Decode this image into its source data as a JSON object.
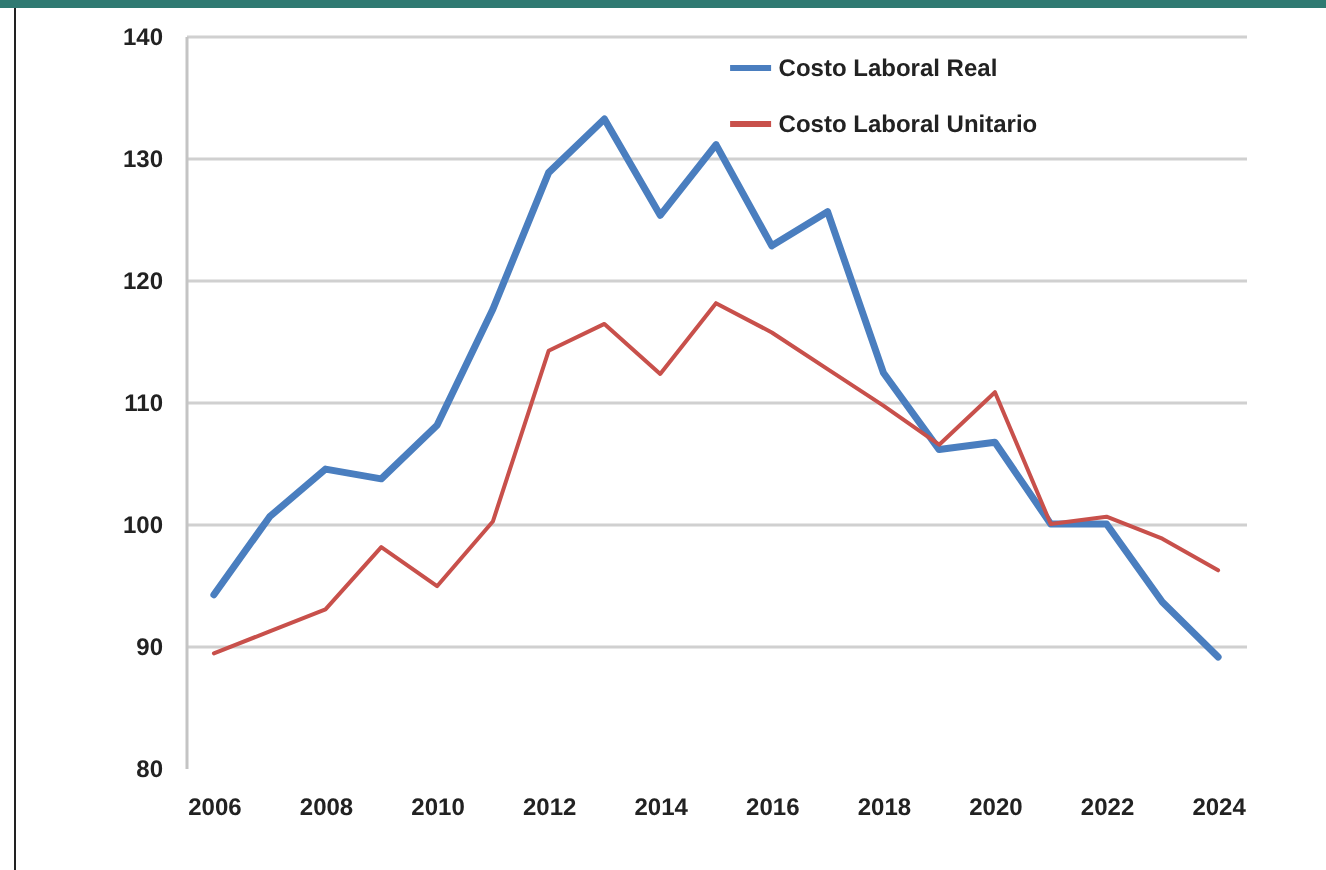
{
  "chart_data": {
    "type": "line",
    "x": [
      2006,
      2007,
      2008,
      2009,
      2010,
      2011,
      2012,
      2013,
      2014,
      2015,
      2016,
      2017,
      2018,
      2019,
      2020,
      2021,
      2022,
      2023,
      2024
    ],
    "series": [
      {
        "name": "Costo Laboral Real",
        "color": "#4a7ebf",
        "values": [
          94.2,
          100.6,
          104.5,
          103.7,
          108.1,
          117.6,
          128.8,
          133.2,
          125.3,
          131.1,
          122.8,
          125.6,
          112.4,
          106.1,
          106.7,
          100.0,
          100.0,
          93.6,
          89.1
        ]
      },
      {
        "name": "Costo Laboral Unitario",
        "color": "#c8504b",
        "values": [
          89.4,
          91.2,
          93.0,
          98.1,
          94.9,
          100.2,
          114.2,
          116.4,
          112.3,
          118.1,
          115.7,
          112.7,
          109.7,
          106.5,
          110.8,
          100.0,
          100.6,
          98.8,
          96.2
        ]
      }
    ],
    "xlim": [
      2005.5,
      2024.5
    ],
    "xticks": [
      2006,
      2008,
      2010,
      2012,
      2014,
      2016,
      2018,
      2020,
      2022,
      2024
    ],
    "ylim": [
      80,
      140
    ],
    "yticks": [
      80,
      90,
      100,
      110,
      120,
      130,
      140
    ],
    "grid": "y",
    "legend": "top right"
  }
}
